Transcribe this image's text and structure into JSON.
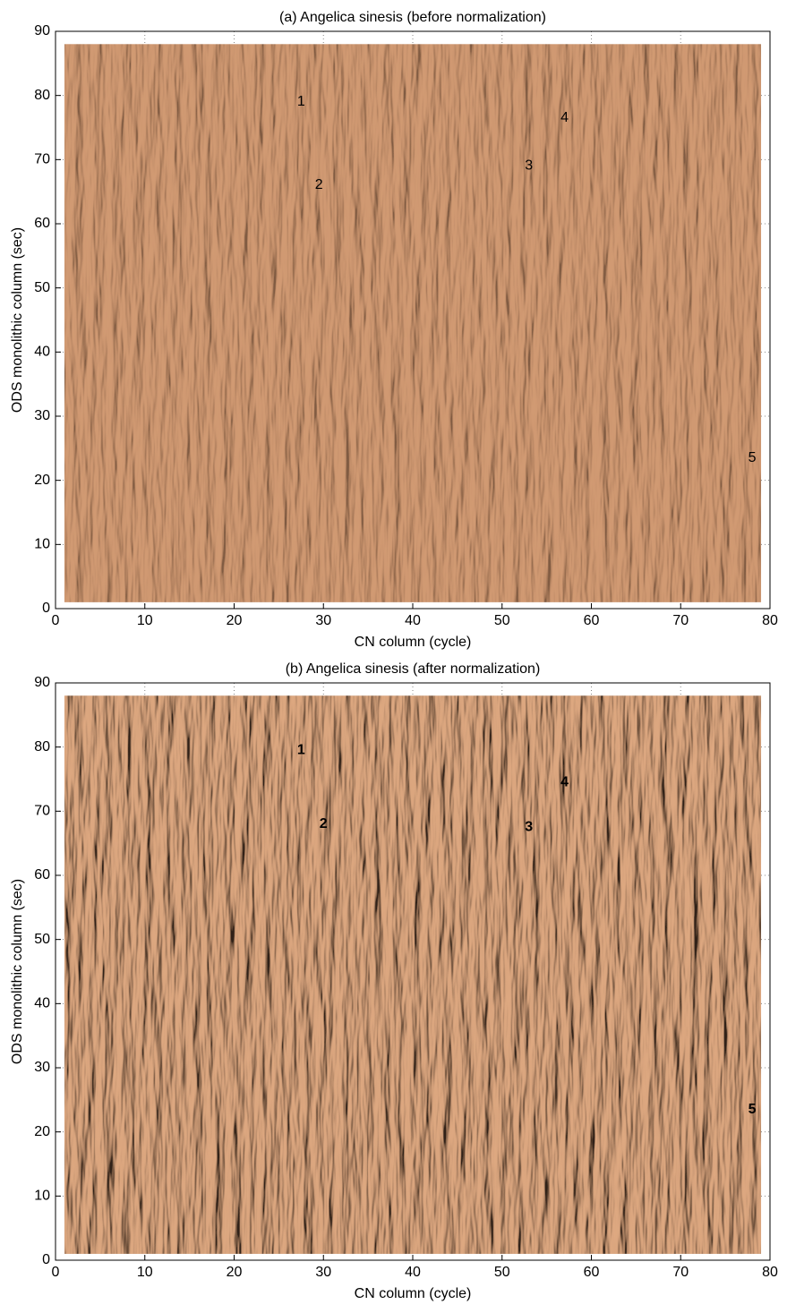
{
  "chart_data": [
    {
      "type": "surface",
      "title": "(a) Angelica sinesis (before normalization)",
      "xlabel": "CN column (cycle)",
      "ylabel": "ODS monolithic column (sec)",
      "xlim": [
        0,
        80
      ],
      "ylim": [
        0,
        90
      ],
      "xticks": [
        0,
        10,
        20,
        30,
        40,
        50,
        60,
        70,
        80
      ],
      "yticks": [
        0,
        10,
        20,
        30,
        40,
        50,
        60,
        70,
        80,
        90
      ],
      "grid": true,
      "color": "#c68d66",
      "extent": {
        "x": [
          1,
          79
        ],
        "y": [
          1,
          88
        ]
      },
      "annotations": [
        {
          "text": "1",
          "x": 27.5,
          "y": 79
        },
        {
          "text": "2",
          "x": 29.5,
          "y": 66
        },
        {
          "text": "3",
          "x": 53,
          "y": 69
        },
        {
          "text": "4",
          "x": 57,
          "y": 76.5
        },
        {
          "text": "5",
          "x": 78,
          "y": 23.5
        }
      ]
    },
    {
      "type": "surface",
      "title": "(b) Angelica sinesis (after normalization)",
      "xlabel": "CN column (cycle)",
      "ylabel": "ODS monolithic column (sec)",
      "xlim": [
        0,
        80
      ],
      "ylim": [
        0,
        90
      ],
      "xticks": [
        0,
        10,
        20,
        30,
        40,
        50,
        60,
        70,
        80
      ],
      "yticks": [
        0,
        10,
        20,
        30,
        40,
        50,
        60,
        70,
        80,
        90
      ],
      "grid": true,
      "color": "#c08760",
      "extent": {
        "x": [
          1,
          79
        ],
        "y": [
          1,
          88
        ]
      },
      "annotations": [
        {
          "text": "1",
          "x": 27.5,
          "y": 79.5
        },
        {
          "text": "2",
          "x": 30,
          "y": 68
        },
        {
          "text": "3",
          "x": 53,
          "y": 67.5
        },
        {
          "text": "4",
          "x": 57,
          "y": 74.5
        },
        {
          "text": "5",
          "x": 78,
          "y": 23.5
        }
      ]
    }
  ]
}
